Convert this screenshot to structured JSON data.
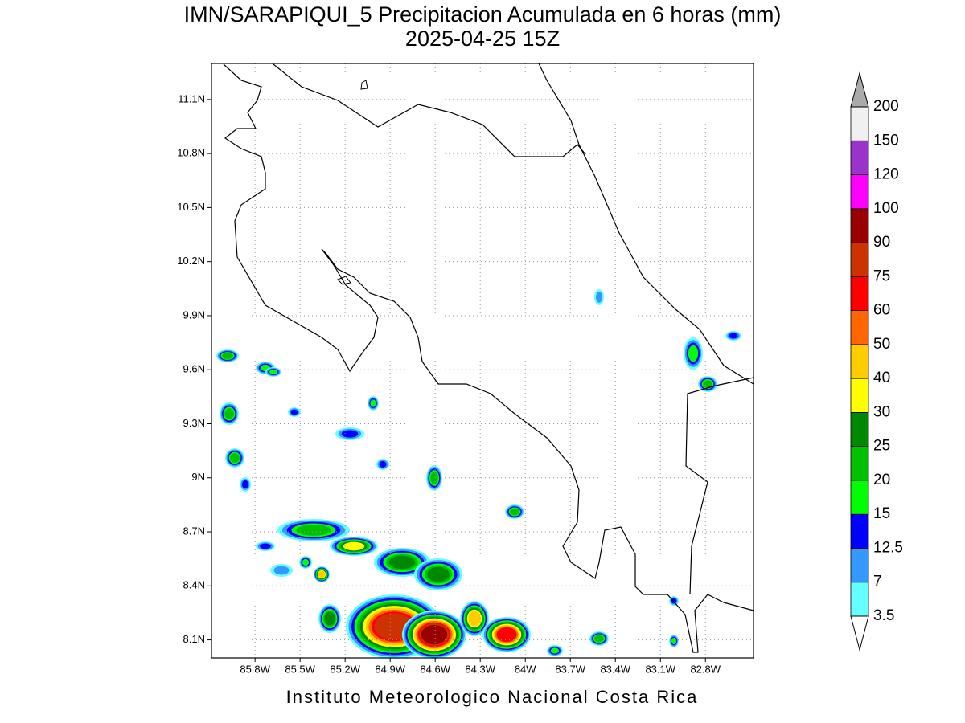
{
  "map": {
    "title": "IMN/SARAPIQUI_5 Precipitacion Acumulada en 6 horas (mm)",
    "subtitle": "2025-04-25 15Z",
    "credit": "Instituto Meteorologico Nacional Costa Rica",
    "xlim": [
      -86.09,
      -82.48
    ],
    "ylim": [
      8.0,
      11.3
    ],
    "grid": true,
    "xticks": [
      {
        "value": -85.8,
        "label": "85.8W"
      },
      {
        "value": -85.5,
        "label": "85.5W"
      },
      {
        "value": -85.2,
        "label": "85.2W"
      },
      {
        "value": -84.9,
        "label": "84.9W"
      },
      {
        "value": -84.6,
        "label": "84.6W"
      },
      {
        "value": -84.3,
        "label": "84.3W"
      },
      {
        "value": -84.0,
        "label": "84W"
      },
      {
        "value": -83.7,
        "label": "83.7W"
      },
      {
        "value": -83.4,
        "label": "83.4W"
      },
      {
        "value": -83.1,
        "label": "83.1W"
      },
      {
        "value": -82.8,
        "label": "82.8W"
      }
    ],
    "yticks": [
      {
        "value": 8.1,
        "label": "8.1N"
      },
      {
        "value": 8.4,
        "label": "8.4N"
      },
      {
        "value": 8.7,
        "label": "8.7N"
      },
      {
        "value": 9.0,
        "label": "9N"
      },
      {
        "value": 9.3,
        "label": "9.3N"
      },
      {
        "value": 9.6,
        "label": "9.6N"
      },
      {
        "value": 9.9,
        "label": "9.9N"
      },
      {
        "value": 10.2,
        "label": "10.2N"
      },
      {
        "value": 10.5,
        "label": "10.5N"
      },
      {
        "value": 10.8,
        "label": "10.8N"
      },
      {
        "value": 11.1,
        "label": "11.1N"
      }
    ]
  },
  "colorbar": {
    "levels": [
      3.5,
      7,
      12.5,
      15,
      20,
      25,
      30,
      40,
      50,
      60,
      75,
      90,
      100,
      120,
      150,
      200
    ],
    "colors": [
      "#66ffff",
      "#3399ff",
      "#0000ff",
      "#00ff00",
      "#00c000",
      "#008800",
      "#ffff00",
      "#ffcc00",
      "#ff6600",
      "#ff0000",
      "#cc3300",
      "#990000",
      "#ff00ff",
      "#9933cc",
      "#f0f0f0"
    ],
    "under_color": "#ffffff",
    "over_color": "#aaaaaa"
  }
}
